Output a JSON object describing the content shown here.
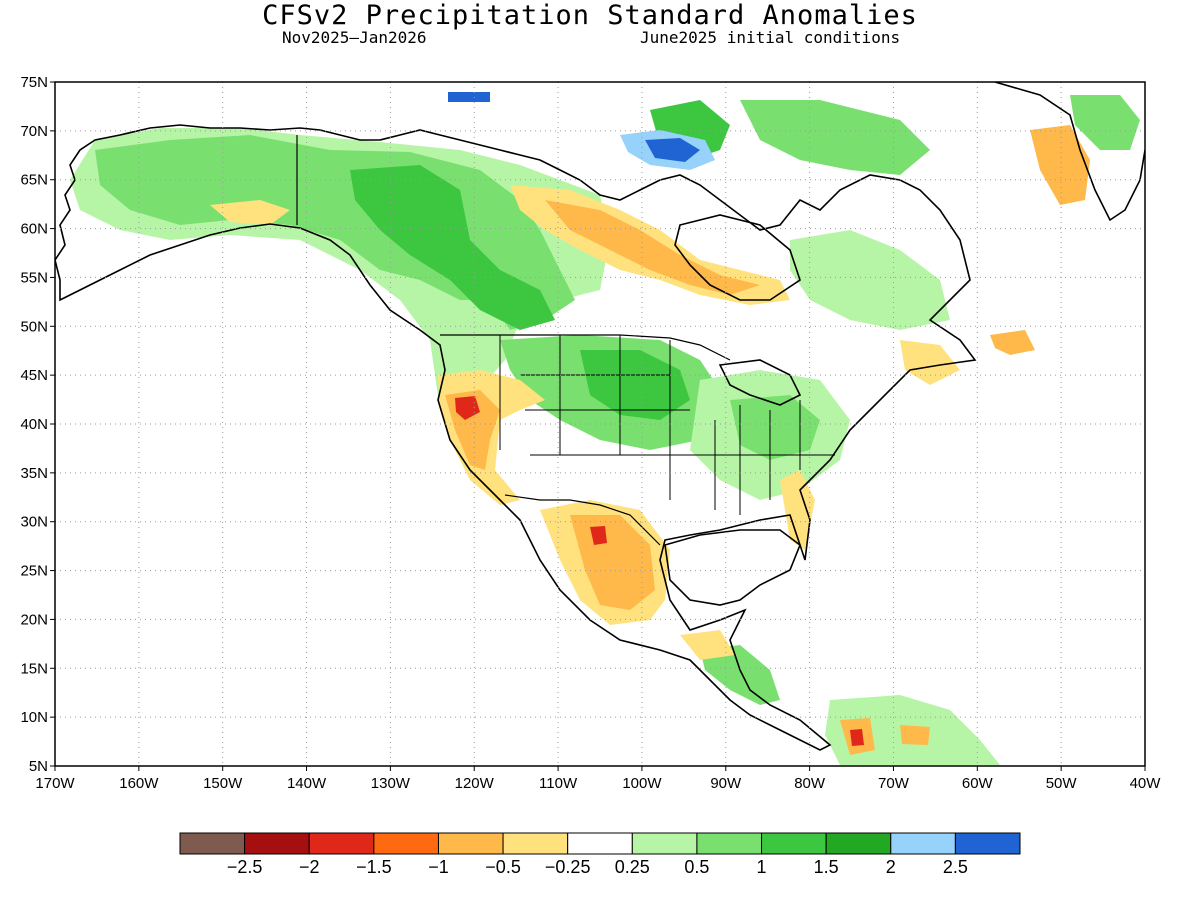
{
  "header": {
    "title": "CFSv2 Precipitation Standard Anomalies",
    "period": "Nov2025–Jan2026",
    "conditions": "June2025 initial conditions"
  },
  "map": {
    "lon_range": [
      -170,
      -40
    ],
    "lat_range": [
      5,
      75
    ],
    "lat_labels": [
      "75N",
      "70N",
      "65N",
      "60N",
      "55N",
      "50N",
      "45N",
      "40N",
      "35N",
      "30N",
      "25N",
      "20N",
      "15N",
      "10N",
      "5N"
    ],
    "lon_labels": [
      "170W",
      "160W",
      "150W",
      "140W",
      "130W",
      "120W",
      "110W",
      "100W",
      "90W",
      "80W",
      "70W",
      "60W",
      "50W",
      "40W"
    ],
    "grid": "dotted",
    "region": "North America"
  },
  "colorbar": {
    "colors": [
      "#7f5a4e",
      "#a50f0f",
      "#e0281a",
      "#ff6a10",
      "#ffb84a",
      "#ffe27e",
      "#ffffff",
      "#b7f5a6",
      "#79e070",
      "#3dc63f",
      "#22a823",
      "#96d2fa",
      "#1f64d2"
    ],
    "tick_labels": [
      "−2.5",
      "−2",
      "−1.5",
      "−1",
      "−0.5",
      "−0.25",
      "0.25",
      "0.5",
      "1",
      "1.5",
      "2",
      "2.5"
    ]
  },
  "anomaly_palette": {
    "dry_light": "#ffe27e",
    "dry_mid": "#ffb84a",
    "dry_strong": "#ff6a10",
    "dry_extreme": "#e0281a",
    "wet_light": "#b7f5a6",
    "wet_mid": "#79e070",
    "wet_strong": "#3dc63f",
    "wet_extreme": "#22a823",
    "very_wet": "#96d2fa",
    "extreme_wet": "#1f64d2"
  }
}
